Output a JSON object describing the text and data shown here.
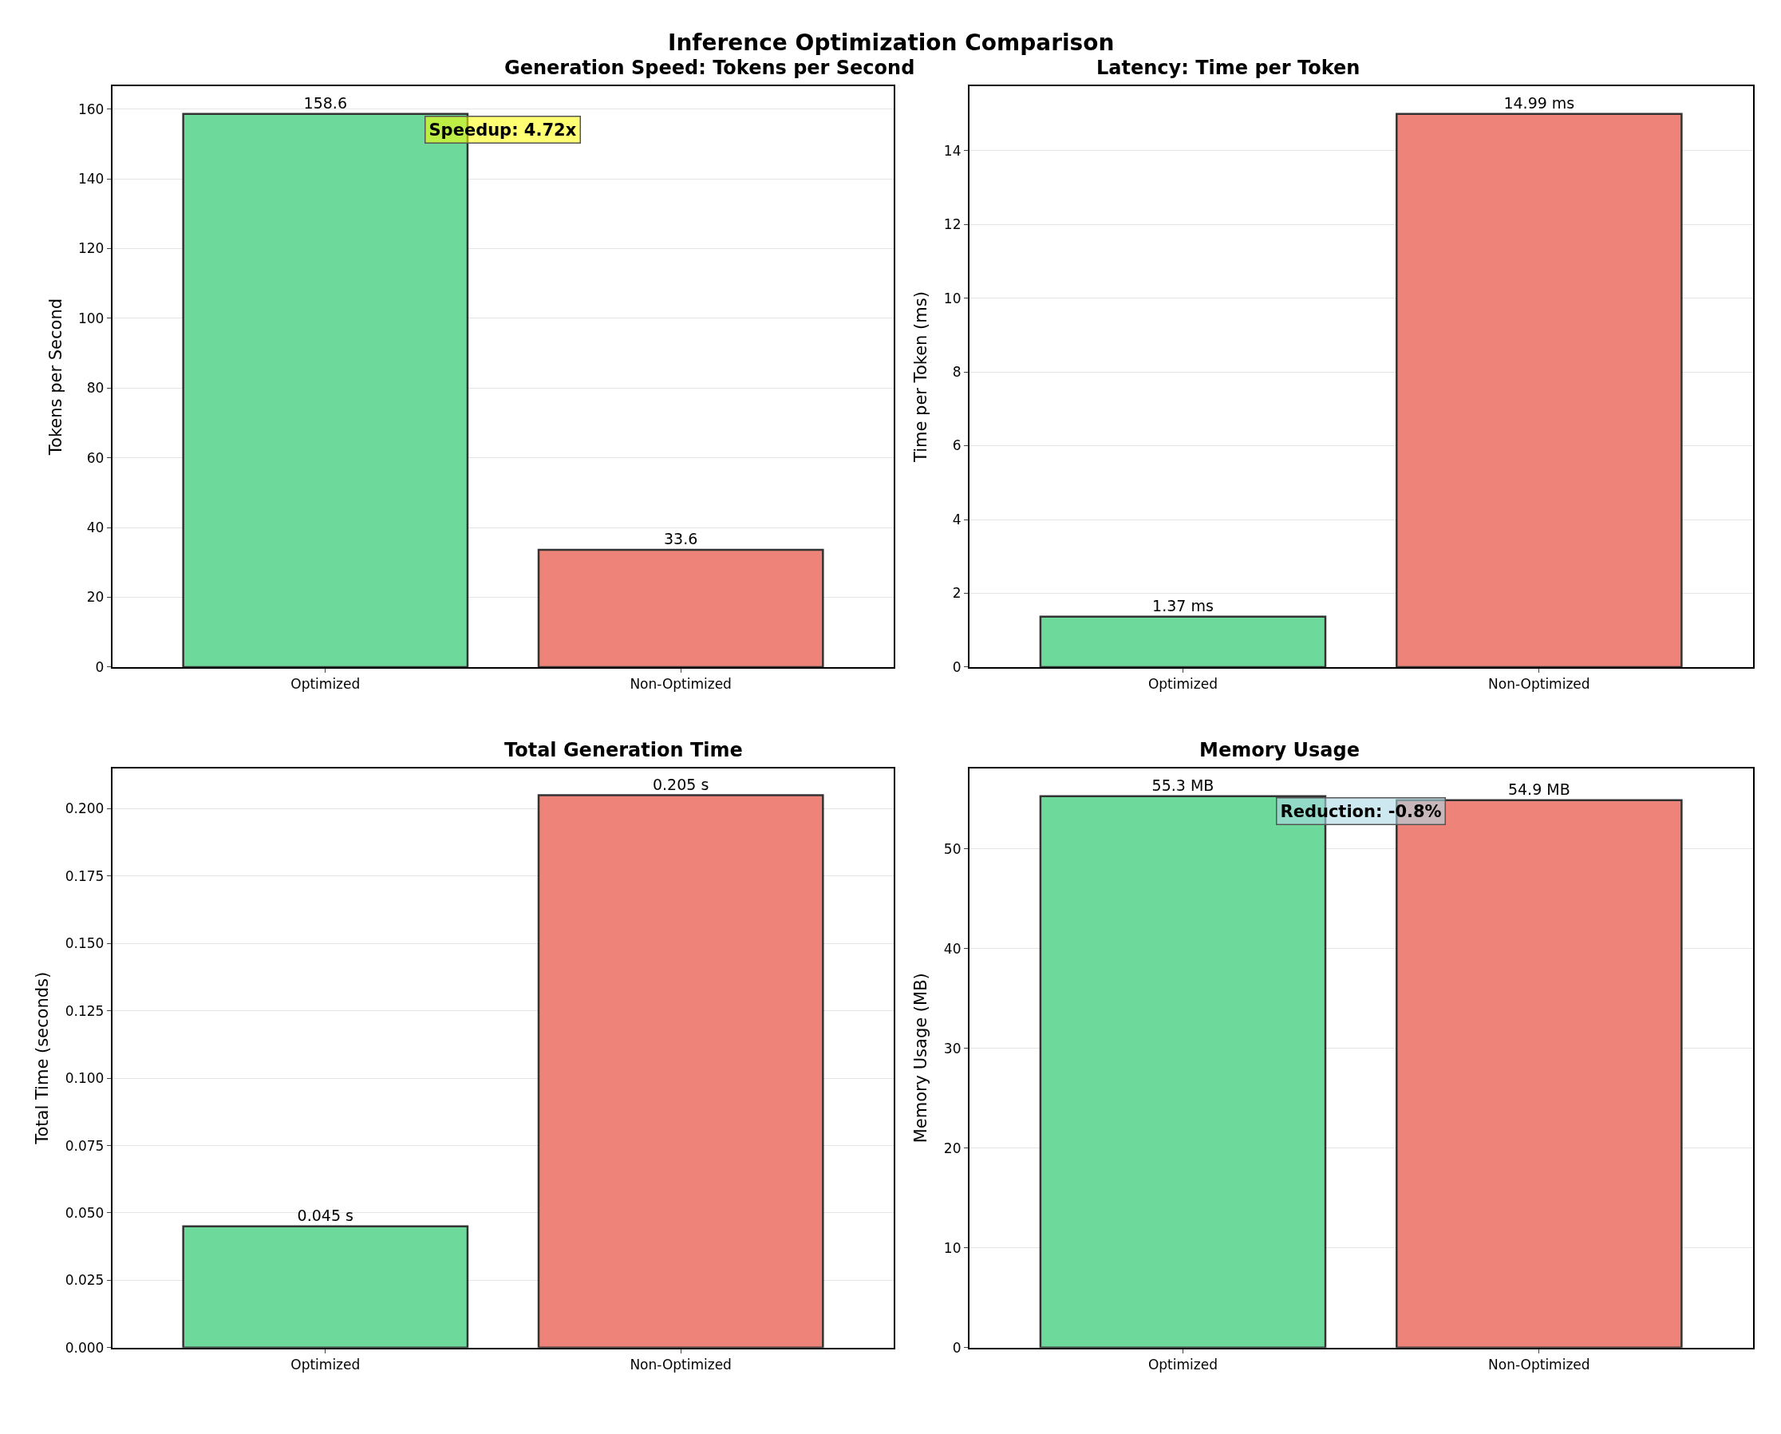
{
  "chart_data": [
    {
      "type": "bar",
      "title": "Generation Speed: Tokens per Second",
      "ylabel": "Tokens per Second",
      "categories": [
        "Optimized",
        "Non-Optimized"
      ],
      "values": [
        158.6,
        33.6
      ],
      "colors": [
        "#6dd99b",
        "#ee8479"
      ],
      "value_labels": [
        "158.6",
        "33.6"
      ],
      "ylim": [
        0,
        166.5
      ],
      "yticks": [
        0,
        20,
        40,
        60,
        80,
        100,
        120,
        140,
        160
      ],
      "grid": "y",
      "annotations": [
        "Inference Optimization Comparison",
        "Speedup: 4.72x"
      ]
    },
    {
      "type": "bar",
      "title": "Latency: Time per Token",
      "ylabel": "Time per Token (ms)",
      "categories": [
        "Optimized",
        "Non-Optimized"
      ],
      "values": [
        1.37,
        14.99
      ],
      "colors": [
        "#6dd99b",
        "#ee8479"
      ],
      "value_labels": [
        "1.37 ms",
        "14.99 ms"
      ],
      "ylim": [
        0,
        15.74
      ],
      "yticks": [
        0,
        2,
        4,
        6,
        8,
        10,
        12,
        14
      ],
      "grid": "y"
    },
    {
      "type": "bar",
      "title": "Total Generation Time",
      "ylabel": "Total Time (seconds)",
      "categories": [
        "Optimized",
        "Non-Optimized"
      ],
      "values": [
        0.045,
        0.205
      ],
      "colors": [
        "#6dd99b",
        "#ee8479"
      ],
      "value_labels": [
        "0.045 s",
        "0.205 s"
      ],
      "ylim": [
        0,
        0.215
      ],
      "yticks": [
        {
          "value": 0,
          "label": "0.000"
        },
        {
          "value": 0.025,
          "label": "0.025"
        },
        {
          "value": 0.05,
          "label": "0.050"
        },
        {
          "value": 0.075,
          "label": "0.075"
        },
        {
          "value": 0.1,
          "label": "0.100"
        },
        {
          "value": 0.125,
          "label": "0.125"
        },
        {
          "value": 0.15,
          "label": "0.150"
        },
        {
          "value": 0.175,
          "label": "0.175"
        },
        {
          "value": 0.2,
          "label": "0.200"
        }
      ],
      "grid": "y"
    },
    {
      "type": "bar",
      "title": "Memory Usage",
      "ylabel": "Memory Usage (MB)",
      "categories": [
        "Optimized",
        "Non-Optimized"
      ],
      "values": [
        55.3,
        54.9
      ],
      "colors": [
        "#6dd99b",
        "#ee8479"
      ],
      "value_labels": [
        "55.3 MB",
        "54.9 MB"
      ],
      "ylim": [
        0,
        58.1
      ],
      "yticks": [
        0,
        10,
        20,
        30,
        40,
        50
      ],
      "grid": "y",
      "annotations": [
        "Reduction: -0.8%"
      ]
    }
  ]
}
